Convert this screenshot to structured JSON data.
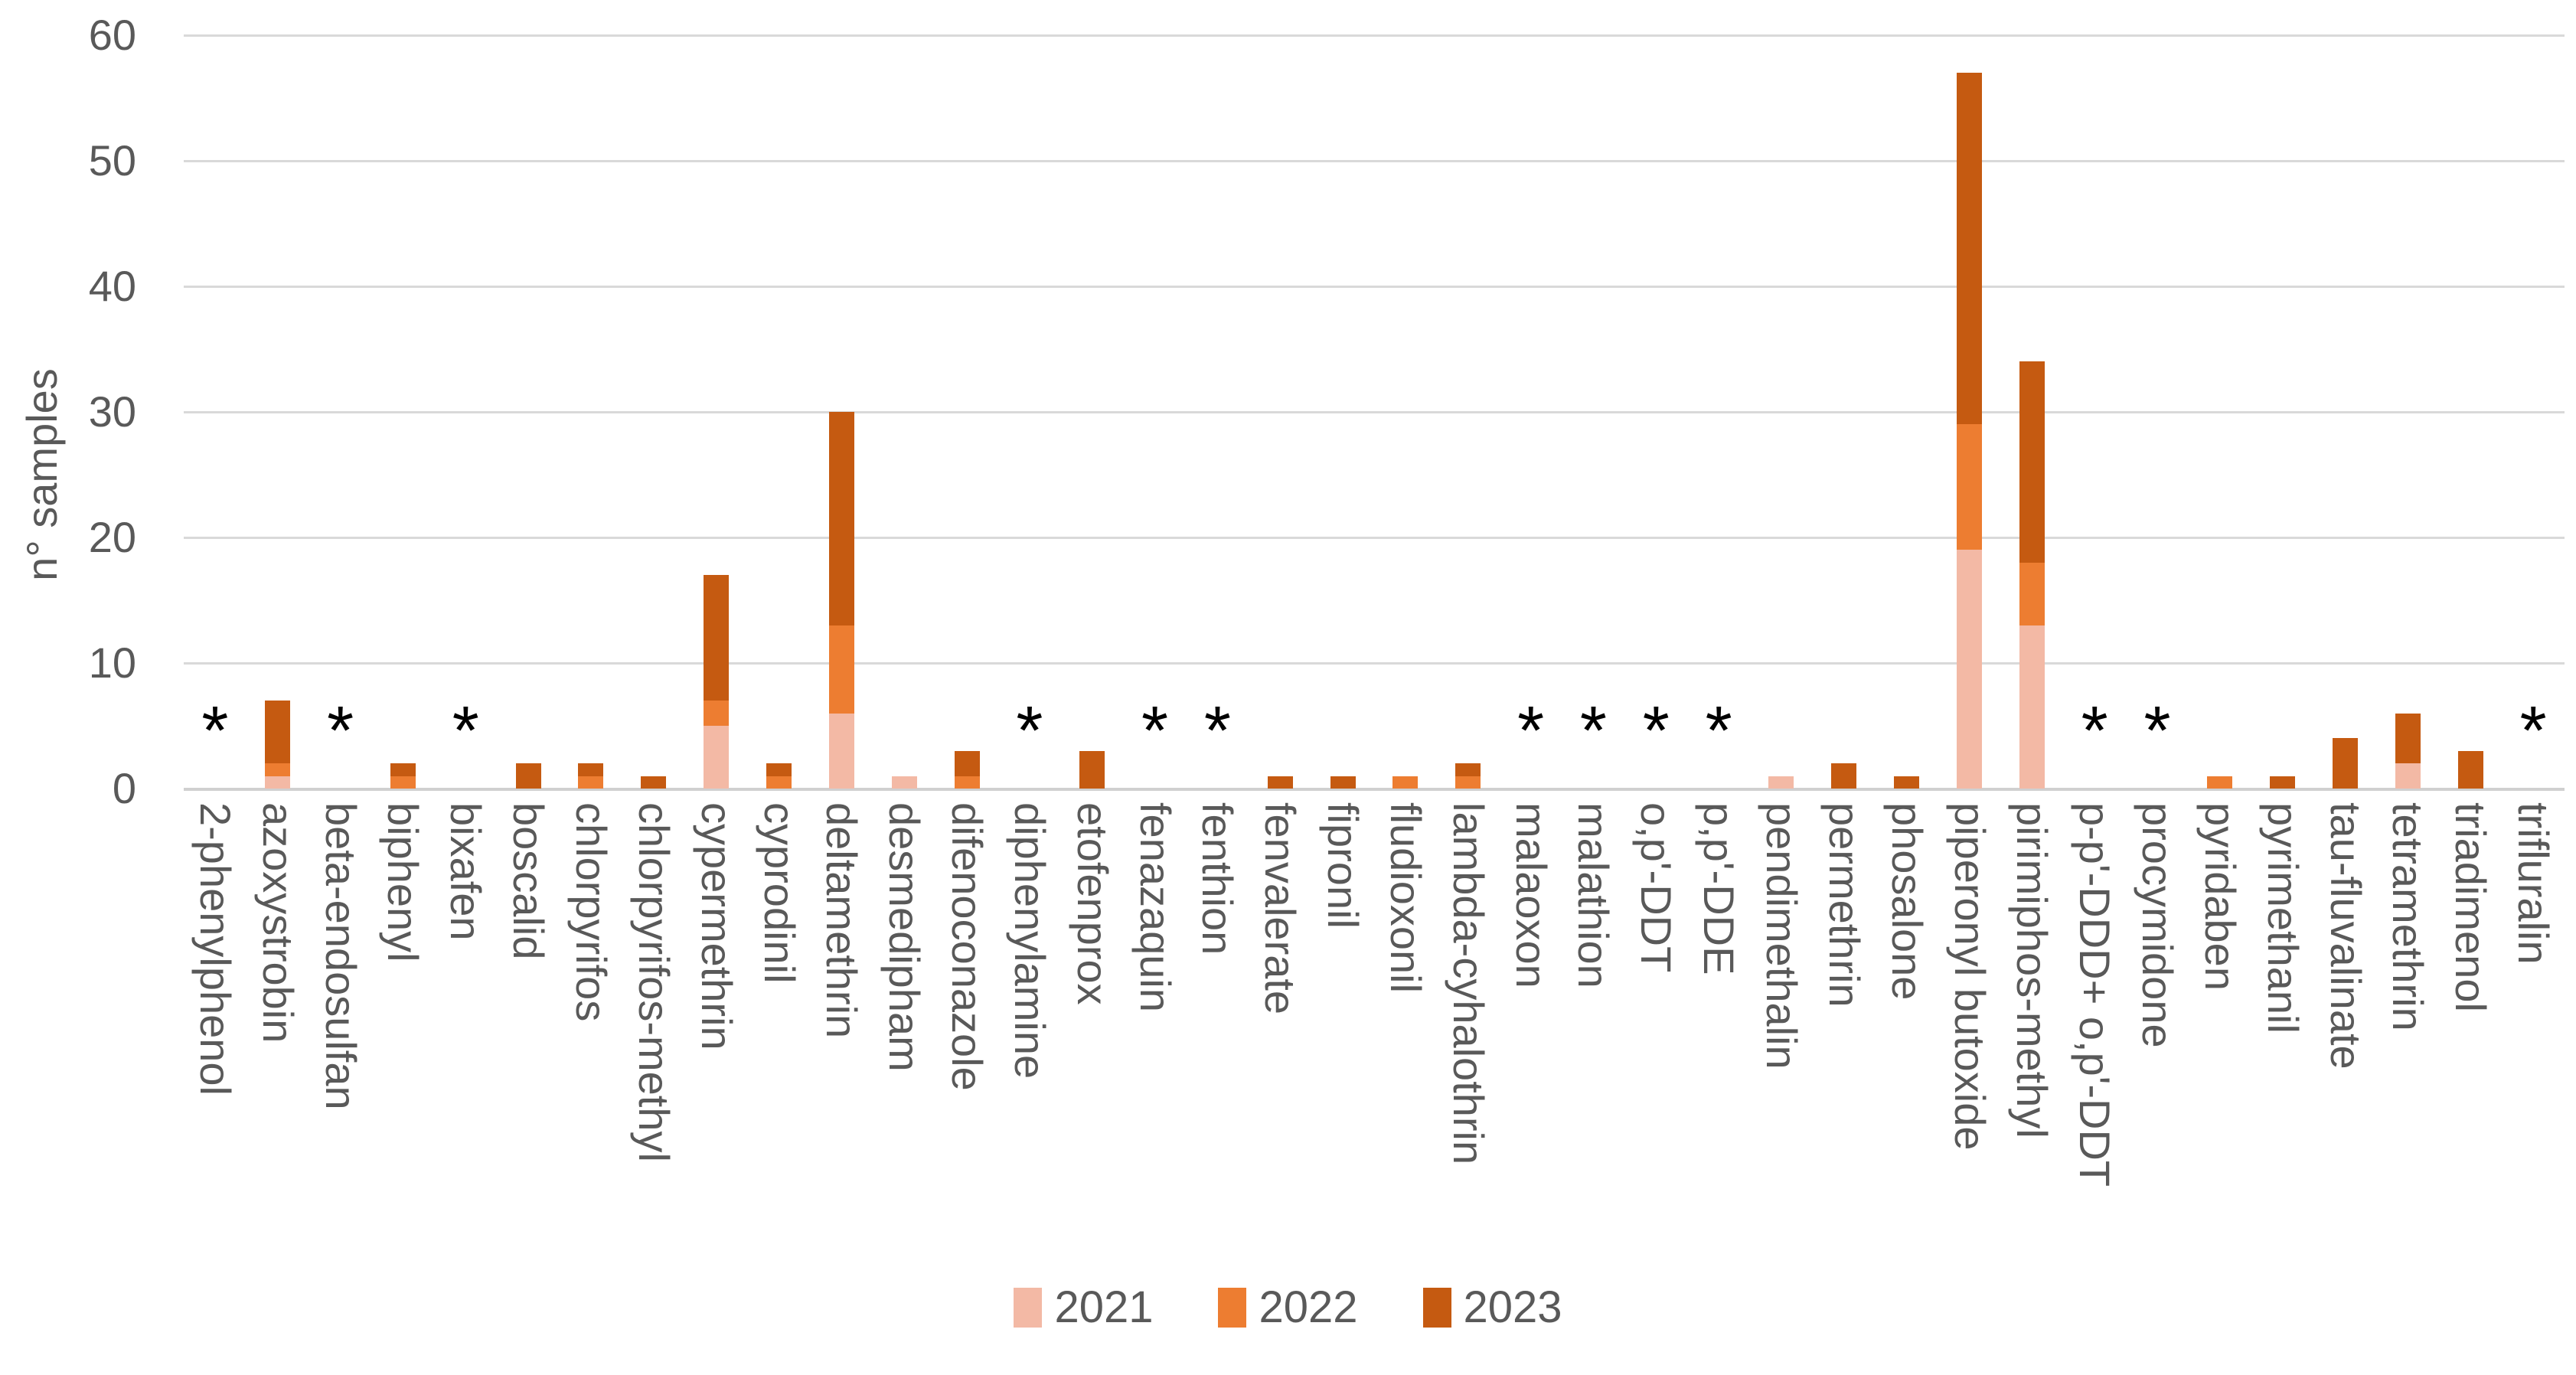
{
  "chart_data": {
    "type": "bar",
    "stacked": true,
    "title": "",
    "ylabel": "n° samples",
    "xlabel": "",
    "ylim": [
      0,
      60
    ],
    "yticks": [
      0,
      10,
      20,
      30,
      40,
      50,
      60
    ],
    "grid": "horizontal",
    "legend_position": "bottom-center",
    "annotation_marker": "*",
    "annotation_meaning_visible_only_as": "*",
    "categories": [
      "2-phenylphenol",
      "azoxystrobin",
      "beta-endosulfan",
      "biphenyl",
      "bixafen",
      "boscalid",
      "chlorpyrifos",
      "chlorpyrifos-methyl",
      "cypermethrin",
      "cyprodinil",
      "deltamethrin",
      "desmedipham",
      "difenoconazole",
      "diphenylamine",
      "etofenprox",
      "fenazaquin",
      "fenthion",
      "fenvalerate",
      "fipronil",
      "fludioxonil",
      "lambda-cyhalothrin",
      "malaoxon",
      "malathion",
      "o,p'-DDT",
      "p,p'-DDE",
      "pendimethalin",
      "permethrin",
      "phosalone",
      "piperonyl butoxide",
      "pirimiphos-methyl",
      "p-p'-DDD+ o,p'-DDT",
      "procymidone",
      "pyridaben",
      "pyrimethanil",
      "tau-fluvalinate",
      "tetramethrin",
      "triadimenol",
      "trifluralin"
    ],
    "asterisk_flags": [
      1,
      0,
      1,
      0,
      1,
      0,
      0,
      0,
      0,
      0,
      0,
      0,
      0,
      1,
      0,
      1,
      1,
      0,
      0,
      0,
      0,
      1,
      1,
      1,
      1,
      0,
      0,
      0,
      0,
      0,
      1,
      1,
      0,
      0,
      0,
      0,
      0,
      1
    ],
    "series": [
      {
        "name": "2021",
        "color": "#f3b9a5",
        "values": [
          0,
          1,
          0,
          0,
          0,
          0,
          0,
          0,
          5,
          0,
          6,
          1,
          0,
          0,
          0,
          0,
          0,
          0,
          0,
          0,
          0,
          0,
          0,
          0,
          0,
          1,
          0,
          0,
          19,
          13,
          0,
          0,
          0,
          0,
          0,
          2,
          0,
          0
        ]
      },
      {
        "name": "2022",
        "color": "#ed7d31",
        "values": [
          0,
          1,
          0,
          1,
          0,
          0,
          1,
          0,
          2,
          1,
          7,
          0,
          1,
          0,
          0,
          0,
          0,
          0,
          0,
          1,
          1,
          0,
          0,
          0,
          0,
          0,
          0,
          0,
          10,
          5,
          0,
          0,
          1,
          0,
          0,
          0,
          0,
          0
        ]
      },
      {
        "name": "2023",
        "color": "#c55a11",
        "values": [
          0,
          5,
          0,
          1,
          0,
          2,
          1,
          1,
          10,
          1,
          17,
          0,
          2,
          0,
          3,
          0,
          0,
          1,
          1,
          0,
          1,
          0,
          0,
          0,
          0,
          0,
          2,
          1,
          28,
          16,
          0,
          0,
          0,
          1,
          4,
          4,
          3,
          0
        ]
      }
    ],
    "totals": [
      0,
      7,
      0,
      2,
      0,
      2,
      2,
      1,
      17,
      2,
      30,
      1,
      3,
      0,
      3,
      0,
      0,
      1,
      1,
      1,
      2,
      0,
      0,
      0,
      0,
      1,
      2,
      1,
      57,
      34,
      0,
      0,
      1,
      1,
      4,
      6,
      3,
      0
    ]
  },
  "axis": {
    "y_label": "n° samples"
  },
  "legend": {
    "items": [
      {
        "label": "2021",
        "color": "#f3b9a5"
      },
      {
        "label": "2022",
        "color": "#ed7d31"
      },
      {
        "label": "2023",
        "color": "#c55a11"
      }
    ]
  },
  "colors": {
    "grid": "#d9d9d9",
    "axis_text": "#595959",
    "background": "#ffffff",
    "asterisk": "#000000"
  }
}
